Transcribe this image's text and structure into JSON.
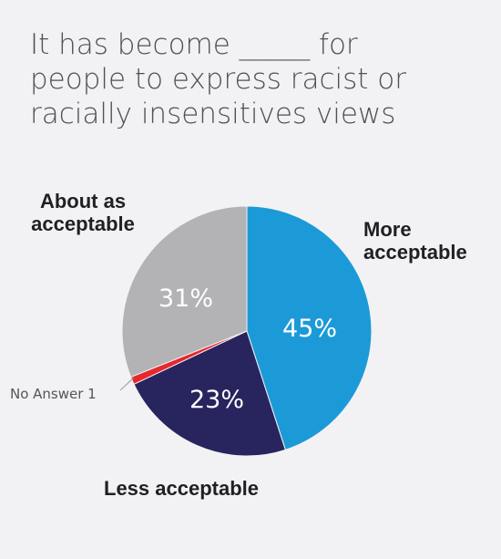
{
  "chart_data": {
    "type": "pie",
    "title_lines": [
      "It has become _____ for",
      "people to express racist or",
      "racially insensitives views"
    ],
    "slices": [
      {
        "name": "More acceptable",
        "label_lines": [
          "More",
          "acceptable"
        ],
        "value": 45,
        "display": "45%",
        "color": "#1c9ad8"
      },
      {
        "name": "Less acceptable",
        "label_lines": [
          "Less acceptable"
        ],
        "value": 23,
        "display": "23%",
        "color": "#28245e"
      },
      {
        "name": "No Answer",
        "label_lines": [
          "No Answer 1"
        ],
        "value": 1,
        "display": "",
        "color": "#e8262d"
      },
      {
        "name": "About as acceptable",
        "label_lines": [
          "About as",
          "acceptable"
        ],
        "value": 31,
        "display": "31%",
        "color": "#b3b3b5"
      }
    ],
    "start": "12 o'clock",
    "direction": "clockwise",
    "legend": "none"
  }
}
